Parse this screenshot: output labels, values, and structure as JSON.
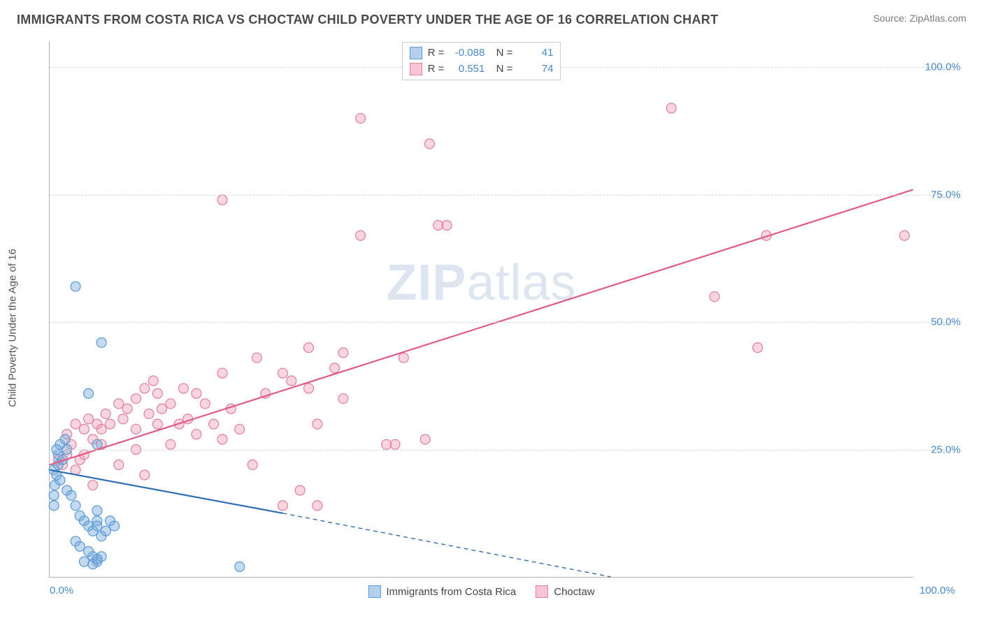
{
  "header": {
    "title": "IMMIGRANTS FROM COSTA RICA VS CHOCTAW CHILD POVERTY UNDER THE AGE OF 16 CORRELATION CHART",
    "source": "Source: ZipAtlas.com"
  },
  "chart": {
    "type": "scatter",
    "y_axis_label": "Child Poverty Under the Age of 16",
    "xlim": [
      0,
      100
    ],
    "ylim": [
      0,
      105
    ],
    "y_ticks": [
      25,
      50,
      75,
      100
    ],
    "y_tick_labels": [
      "25.0%",
      "50.0%",
      "75.0%",
      "100.0%"
    ],
    "x_ticks": [
      0,
      100
    ],
    "x_tick_labels": [
      "0.0%",
      "100.0%"
    ],
    "background_color": "#ffffff",
    "grid_color": "#d8d8d8",
    "axis_color": "#b0b0b0",
    "marker_radius": 7,
    "marker_stroke_width": 1.2,
    "line_width": 2.2,
    "watermark": "ZIPatlas",
    "series": {
      "blue": {
        "name": "Immigrants from Costa Rica",
        "color_fill": "rgba(120,170,220,0.45)",
        "color_stroke": "#5b9bd5",
        "line_color": "#2f6fb3",
        "R": "-0.088",
        "N": "41",
        "trend": {
          "x1": 0,
          "y1": 21,
          "x2_solid": 27,
          "y2_solid": 12.5,
          "x2_dash": 65,
          "y2_dash": 0
        },
        "points": [
          [
            0.5,
            21
          ],
          [
            0.8,
            20
          ],
          [
            1,
            22
          ],
          [
            1,
            24
          ],
          [
            1.2,
            26
          ],
          [
            0.6,
            18
          ],
          [
            0.5,
            16
          ],
          [
            1.5,
            23
          ],
          [
            1.8,
            27
          ],
          [
            2,
            25
          ],
          [
            0.8,
            25
          ],
          [
            1.2,
            19
          ],
          [
            0.5,
            14
          ],
          [
            3,
            57
          ],
          [
            4.5,
            36
          ],
          [
            5.5,
            26
          ],
          [
            5.5,
            13
          ],
          [
            5.5,
            11
          ],
          [
            6,
            46
          ],
          [
            2,
            17
          ],
          [
            2.5,
            16
          ],
          [
            3,
            14
          ],
          [
            3.5,
            12
          ],
          [
            4,
            11
          ],
          [
            4.5,
            10
          ],
          [
            5,
            9
          ],
          [
            5.5,
            10
          ],
          [
            6,
            8
          ],
          [
            6.5,
            9
          ],
          [
            7,
            11
          ],
          [
            7.5,
            10
          ],
          [
            3,
            7
          ],
          [
            3.5,
            6
          ],
          [
            4.5,
            5
          ],
          [
            5,
            4
          ],
          [
            5.5,
            3
          ],
          [
            6,
            4
          ],
          [
            4,
            3
          ],
          [
            5,
            2.5
          ],
          [
            5.5,
            3.5
          ],
          [
            22,
            2
          ]
        ]
      },
      "pink": {
        "name": "Choctaw",
        "color_fill": "rgba(240,150,175,0.40)",
        "color_stroke": "#e37f9b",
        "line_color": "#e05a87",
        "R": "0.551",
        "N": "74",
        "trend": {
          "x1": 0,
          "y1": 22,
          "x2": 100,
          "y2": 76
        },
        "points": [
          [
            1,
            23
          ],
          [
            1.5,
            22
          ],
          [
            2,
            24
          ],
          [
            2.5,
            26
          ],
          [
            3,
            21
          ],
          [
            3.5,
            23
          ],
          [
            2,
            28
          ],
          [
            3,
            30
          ],
          [
            4,
            29
          ],
          [
            4.5,
            31
          ],
          [
            5,
            27
          ],
          [
            5.5,
            30
          ],
          [
            6,
            29
          ],
          [
            6.5,
            32
          ],
          [
            7,
            30
          ],
          [
            8,
            34
          ],
          [
            8.5,
            31
          ],
          [
            9,
            33
          ],
          [
            10,
            29
          ],
          [
            10,
            35
          ],
          [
            11,
            37
          ],
          [
            11.5,
            32
          ],
          [
            12,
            38.5
          ],
          [
            12.5,
            30
          ],
          [
            13,
            33
          ],
          [
            12.5,
            36
          ],
          [
            14,
            34
          ],
          [
            15,
            30
          ],
          [
            15.5,
            37
          ],
          [
            16,
            31
          ],
          [
            17,
            36
          ],
          [
            18,
            34
          ],
          [
            19,
            30
          ],
          [
            20,
            40
          ],
          [
            20,
            27
          ],
          [
            21,
            33
          ],
          [
            22,
            29
          ],
          [
            23.5,
            22
          ],
          [
            24,
            43
          ],
          [
            25,
            36
          ],
          [
            27,
            40
          ],
          [
            28,
            38.5
          ],
          [
            30,
            45
          ],
          [
            30,
            37
          ],
          [
            31,
            30
          ],
          [
            33,
            41
          ],
          [
            34,
            44
          ],
          [
            34,
            35
          ],
          [
            36,
            67
          ],
          [
            39,
            26
          ],
          [
            40,
            26
          ],
          [
            41,
            43
          ],
          [
            43.5,
            27
          ],
          [
            45,
            69
          ],
          [
            14,
            26
          ],
          [
            17,
            28
          ],
          [
            5,
            18
          ],
          [
            8,
            22
          ],
          [
            10,
            25
          ],
          [
            11,
            20
          ],
          [
            27,
            14
          ],
          [
            29,
            17
          ],
          [
            31,
            14
          ],
          [
            36,
            90
          ],
          [
            44,
            85
          ],
          [
            46,
            69
          ],
          [
            20,
            74
          ],
          [
            72,
            92
          ],
          [
            77,
            55
          ],
          [
            82,
            45
          ],
          [
            83,
            67
          ],
          [
            99,
            67
          ],
          [
            4,
            24
          ],
          [
            6,
            26
          ]
        ]
      }
    },
    "legend_bottom": [
      {
        "label": "Immigrants from Costa Rica",
        "fill": "rgba(120,170,220,0.55)",
        "stroke": "#5b9bd5"
      },
      {
        "label": "Choctaw",
        "fill": "rgba(240,150,175,0.55)",
        "stroke": "#e37f9b"
      }
    ]
  }
}
